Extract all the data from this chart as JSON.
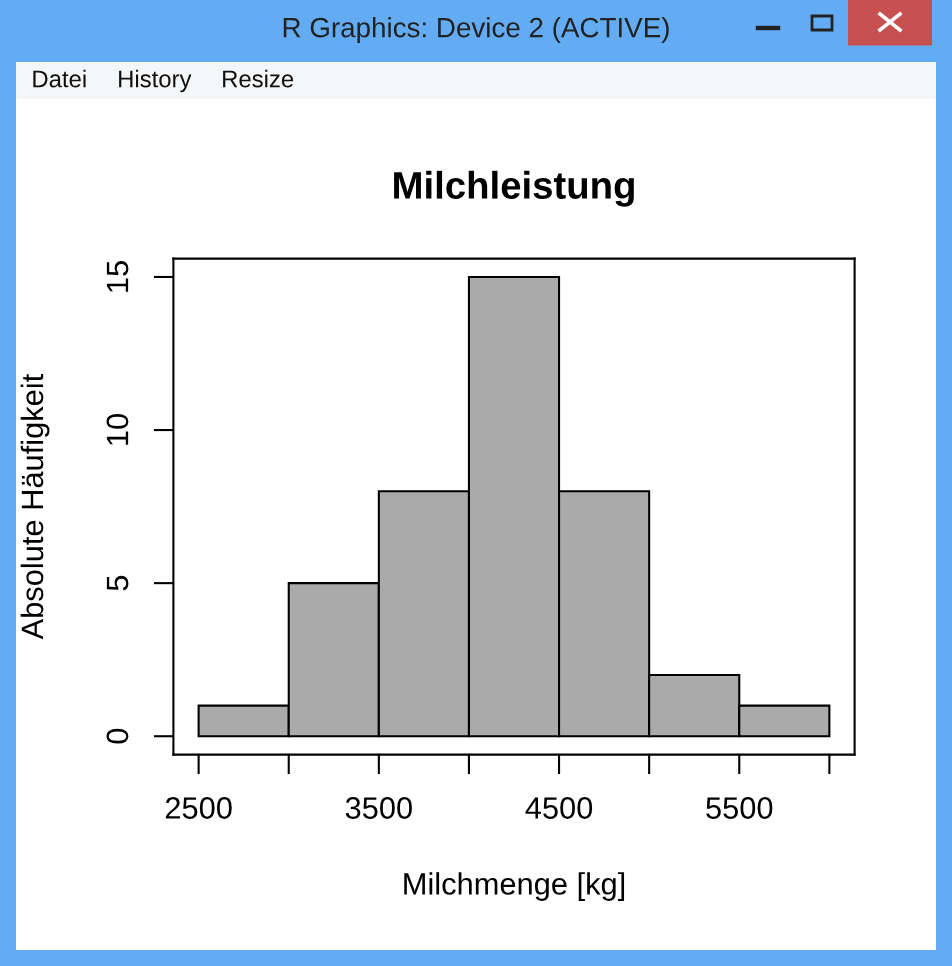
{
  "chart_data": {
    "type": "histogram",
    "title": "Milchleistung",
    "xlabel": "Milchmenge [kg]",
    "ylabel": "Absolute Häufigkeit",
    "annotations": [
      "R Graphics: Device 2 (ACTIVE)",
      "Datei",
      "History",
      "Resize"
    ],
    "bins": [
      2500,
      3000,
      3500,
      4000,
      4500,
      5000,
      5500,
      6000
    ],
    "values": [
      1,
      5,
      8,
      15,
      8,
      2,
      1
    ],
    "color": "#aaaaaa",
    "xlim": [
      2360,
      6140
    ],
    "ylim": [
      -0.6,
      15.6
    ],
    "xticks": [
      2500,
      {
        "value": 3000,
        "label": null
      },
      3500,
      {
        "value": 4000,
        "label": null
      },
      4500,
      {
        "value": 5000,
        "label": null
      },
      5500,
      {
        "value": 6000,
        "label": null
      }
    ],
    "yticks": [
      0,
      5,
      10,
      15
    ]
  }
}
